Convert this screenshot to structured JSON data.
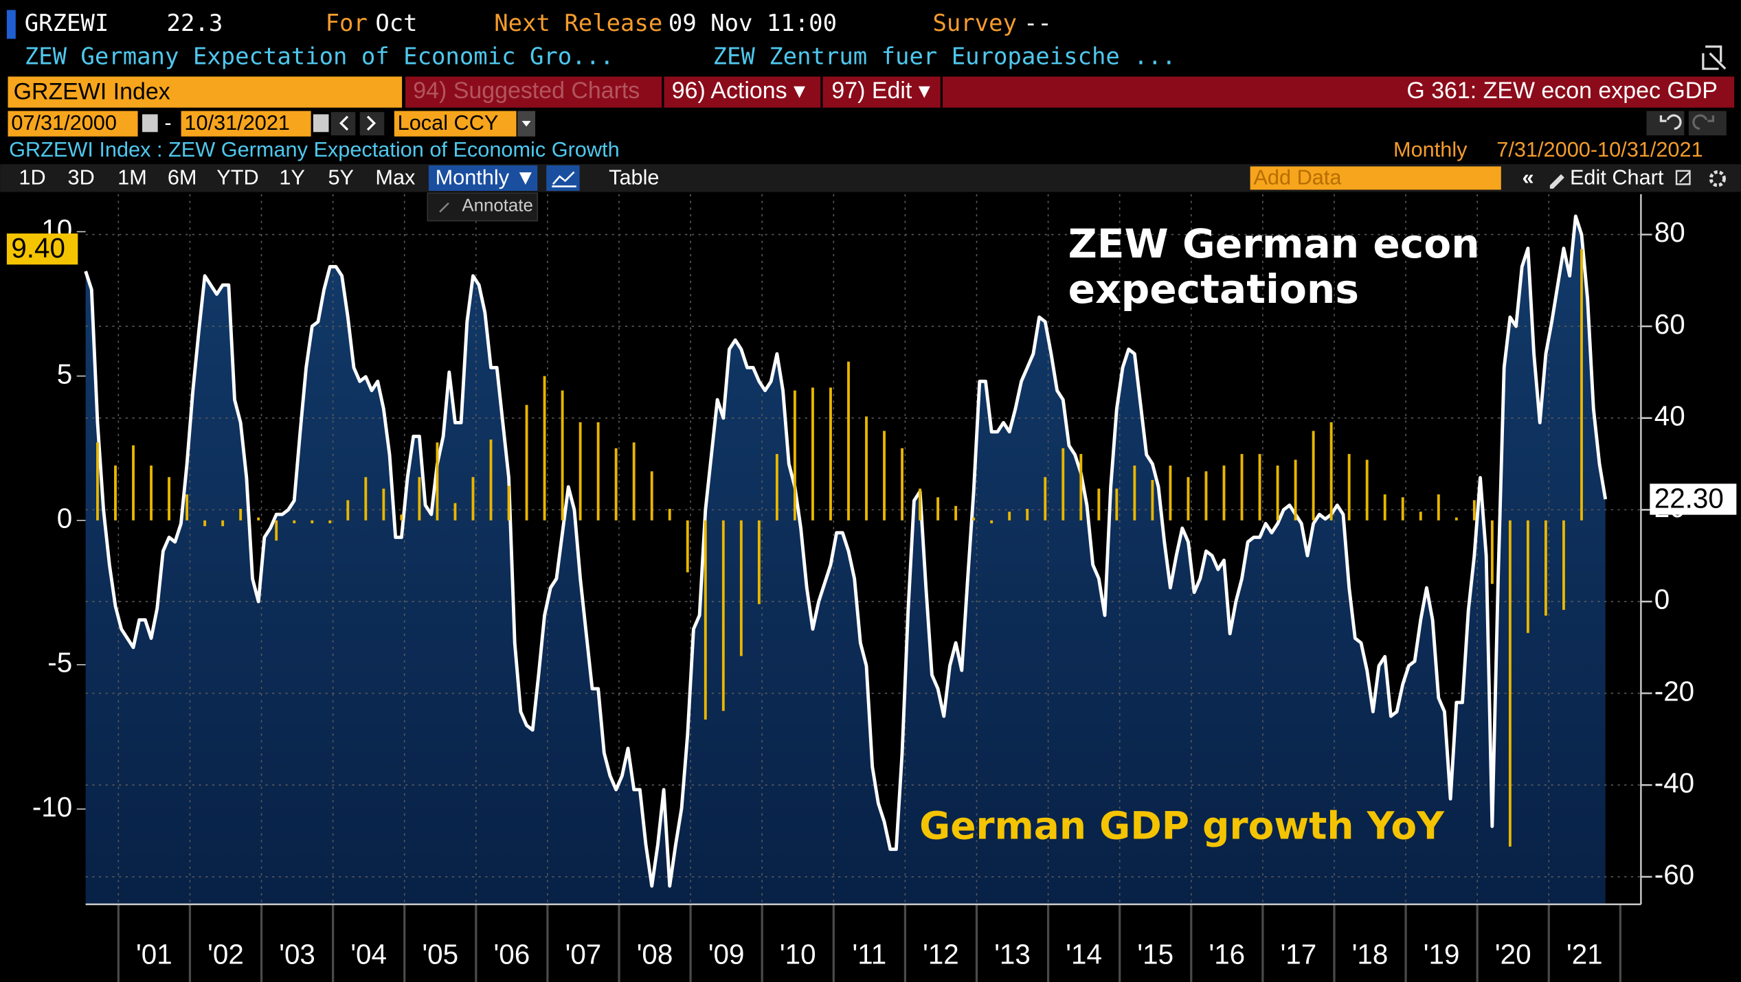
{
  "header": {
    "ticker": "GRZEWI",
    "last": "22.3",
    "for_label": "For",
    "for_value": "Oct",
    "next_release_label": "Next Release",
    "next_release": "09 Nov 11:00",
    "survey_label": "Survey",
    "survey": "--",
    "desc1": "ZEW Germany Expectation of Economic Gro...",
    "desc2": "ZEW Zentrum fuer Europaeische ..."
  },
  "toolbar": {
    "security": "GRZEWI Index",
    "suggested": "94) Suggested Charts",
    "actions": "96) Actions ▾",
    "edit": "97) Edit ▾",
    "function": "G 361: ZEW econ expec GDP",
    "start": "07/31/2000",
    "end": "10/31/2021",
    "currency": "Local CCY"
  },
  "chart_header": {
    "title": "GRZEWI Index : ZEW Germany Expectation of Economic Growth",
    "frequency": "Monthly",
    "range": "7/31/2000-10/31/2021"
  },
  "range_buttons": [
    "1D",
    "3D",
    "1M",
    "6M",
    "YTD",
    "1Y",
    "5Y",
    "Max"
  ],
  "period": "Monthly ▼",
  "table": "Table",
  "annotate": "Annotate",
  "add_data": "Add Data",
  "edit_chart": "Edit Chart",
  "chart_data": {
    "type": "bar-line",
    "x_labels": [
      "'01",
      "'02",
      "'03",
      "'04",
      "'05",
      "'06",
      "'07",
      "'08",
      "'09",
      "'10",
      "'11",
      "'12",
      "'13",
      "'14",
      "'15",
      "'16",
      "'17",
      "'18",
      "'19",
      "'20",
      "'21"
    ],
    "ylim": [
      -13.3,
      11.3
    ],
    "yticks": [
      -10,
      -5,
      0,
      5,
      10
    ],
    "y2lim": [
      -66,
      88.8
    ],
    "y2ticks": [
      -60,
      -40,
      -20,
      0,
      20,
      40,
      60,
      80
    ],
    "grid": true,
    "series": [
      {
        "name": "ZEW German econ expectations",
        "type": "line",
        "axis": "y2",
        "color": "#ffffff",
        "last_label": {
          "value": 22.3,
          "label": "22.30"
        },
        "values": [
          72,
          68,
          39,
          20,
          8,
          -1,
          -6,
          -8,
          -10,
          -4,
          -4,
          -8,
          -1.5,
          11,
          14,
          13,
          17,
          30,
          46,
          59,
          71,
          69,
          67,
          69,
          69,
          44,
          39,
          27,
          5,
          0,
          14,
          16,
          19,
          19,
          20,
          22,
          37,
          51,
          60,
          61,
          68,
          73,
          73,
          71,
          62,
          51,
          48,
          49,
          46,
          48,
          42,
          32,
          14,
          14,
          27,
          36,
          36,
          21,
          19,
          30,
          36,
          50,
          39,
          39,
          61,
          71,
          69,
          63,
          51,
          51,
          39,
          27,
          -9,
          -24,
          -27,
          -28,
          -16,
          -3,
          3,
          5,
          15,
          25,
          20,
          5,
          -7,
          -19,
          -19,
          -33,
          -38,
          -41,
          -38,
          -32,
          -41,
          -41,
          -53,
          -62,
          -53,
          -41,
          -62,
          -53,
          -45,
          -29,
          -6,
          -3,
          20,
          32,
          44,
          40,
          55,
          57,
          55,
          51,
          51,
          48,
          46,
          48,
          54,
          46,
          30,
          25,
          16,
          3,
          -6,
          0,
          4,
          8,
          15,
          15,
          11,
          5,
          -9,
          -14,
          -36,
          -44,
          -48,
          -54,
          -54,
          -33,
          -2,
          22,
          24,
          3,
          -16,
          -19,
          -25,
          -14,
          -9,
          -15,
          5,
          24,
          48,
          48,
          37,
          37,
          39,
          37,
          42,
          48,
          51,
          54,
          62,
          61,
          54,
          46,
          44,
          34,
          32,
          28,
          21,
          8,
          5,
          -3,
          25,
          42,
          51,
          55,
          54,
          43,
          32,
          30,
          25,
          13,
          3,
          10,
          16,
          13,
          2,
          5,
          11,
          10,
          7,
          9,
          -7,
          0,
          5,
          13,
          14,
          14,
          17,
          15,
          17,
          20,
          21,
          19,
          17,
          10,
          17,
          19,
          18,
          19,
          21,
          19,
          3,
          -8,
          -9,
          -15,
          -24,
          -14,
          -12,
          -25,
          -24,
          -18,
          -14,
          -13,
          -4,
          3,
          -4,
          -21,
          -24,
          -43,
          -22,
          -22,
          -2,
          10,
          27,
          10,
          -49,
          5,
          51,
          62,
          60,
          73,
          77,
          54,
          39,
          54,
          61,
          69,
          77,
          71,
          84,
          80,
          66,
          42,
          30,
          22.3
        ]
      },
      {
        "name": "German GDP growth YoY",
        "type": "bar",
        "axis": "y",
        "color": "#e8b600",
        "last_label": {
          "value": 9.4,
          "label": "9.40"
        },
        "values": [
          2.7,
          1.9,
          2.6,
          1.9,
          1.5,
          0.9,
          -0.2,
          -0.2,
          0.4,
          0.1,
          -0.7,
          -0.1,
          -0.1,
          -0.1,
          0.7,
          1.5,
          1.1,
          0.2,
          1.5,
          2.7,
          0.6,
          1.5,
          2.8,
          1.2,
          4.0,
          5.0,
          4.5,
          3.4,
          3.4,
          2.5,
          2.7,
          1.7,
          0.4,
          -1.8,
          -6.9,
          -6.6,
          -4.7,
          -2.9,
          2.3,
          4.5,
          4.6,
          4.6,
          5.5,
          3.6,
          3.1,
          2.5,
          1.1,
          0.8,
          0.5,
          0.1,
          -0.1,
          0.3,
          0.4,
          1.5,
          2.5,
          2.3,
          1.1,
          1.1,
          1.9,
          1.4,
          1.9,
          1.5,
          1.7,
          1.9,
          2.3,
          2.3,
          1.9,
          2.1,
          3.1,
          3.4,
          2.3,
          2.1,
          0.9,
          0.8,
          0.3,
          0.9,
          0.1,
          0.7,
          -2.2,
          -11.3,
          -3.9,
          -3.3,
          -3.1,
          9.4
        ]
      }
    ]
  }
}
